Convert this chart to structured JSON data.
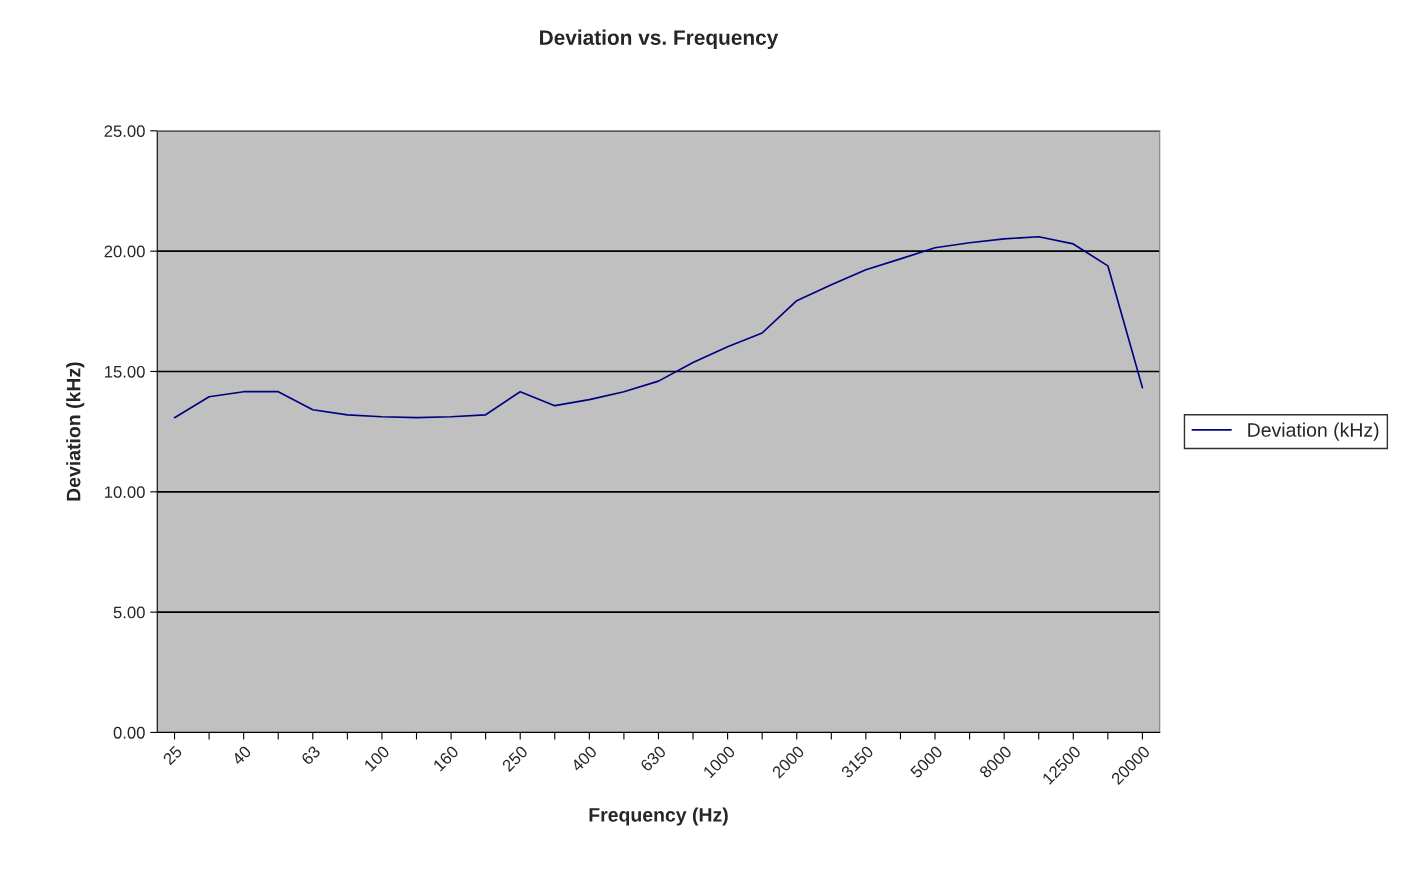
{
  "chart_data": {
    "type": "line",
    "title": "Deviation vs. Frequency",
    "xlabel": "Frequency (Hz)",
    "ylabel": "Deviation (kHz)",
    "categories": [
      "25",
      null,
      "40",
      null,
      "63",
      null,
      "100",
      null,
      "160",
      null,
      "250",
      null,
      "400",
      null,
      "630",
      null,
      "1000",
      null,
      "2000",
      null,
      "3150",
      null,
      "5000",
      null,
      "8000",
      null,
      "12500",
      null,
      "20000"
    ],
    "series": [
      {
        "name": "Deviation (kHz)",
        "color": "#000080",
        "values": [
          13.08,
          13.95,
          14.16,
          14.16,
          13.41,
          13.2,
          13.12,
          13.08,
          13.12,
          13.2,
          14.16,
          13.58,
          13.83,
          14.16,
          14.6,
          15.37,
          16.03,
          16.6,
          17.94,
          18.6,
          19.23,
          19.68,
          20.14,
          20.35,
          20.51,
          20.6,
          20.3,
          19.39,
          14.33
        ]
      }
    ],
    "ylim": [
      0,
      25
    ],
    "yticks": [
      {
        "value": 0,
        "label": "0.00"
      },
      {
        "value": 5,
        "label": "5.00"
      },
      {
        "value": 10,
        "label": "10.00"
      },
      {
        "value": 15,
        "label": "15.00"
      },
      {
        "value": 20,
        "label": "20.00"
      },
      {
        "value": 25,
        "label": "25.00"
      }
    ],
    "grid": "y",
    "legend": "right",
    "marker": "none",
    "line_style": "solid"
  }
}
